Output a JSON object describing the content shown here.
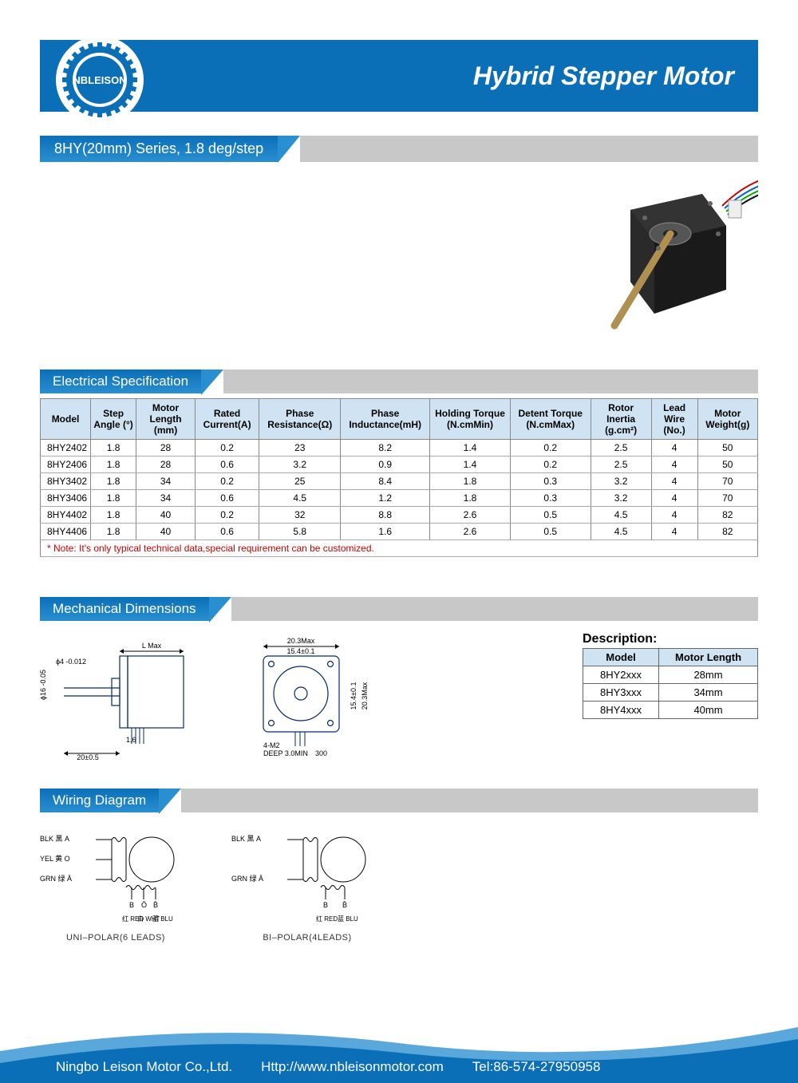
{
  "colors": {
    "primary": "#0b6fb8",
    "primary_light": "#2a8fd0",
    "header_th_bg": "#cfe3f2",
    "gray_bar": "#c8c8c8",
    "note_red": "#c00000",
    "footer_curve": "#0b6fb8"
  },
  "logo_text": "NBLEISON",
  "main_title": "Hybrid Stepper Motor",
  "series_title": "8HY(20mm) Series, 1.8 deg/step",
  "sections": {
    "electrical": "Electrical Specification",
    "mechanical": "Mechanical Dimensions",
    "wiring": "Wiring Diagram"
  },
  "spec_table": {
    "columns": [
      "Model",
      "Step Angle (°)",
      "Motor Length (mm)",
      "Rated Current(A)",
      "Phase Resistance(Ω)",
      "Phase Inductance(mH)",
      "Holding Torque (N.cmMin)",
      "Detent Torque (N.cmMax)",
      "Rotor Inertia (g.cm²)",
      "Lead Wire (No.)",
      "Motor Weight(g)"
    ],
    "rows": [
      [
        "8HY2402",
        "1.8",
        "28",
        "0.2",
        "23",
        "8.2",
        "1.4",
        "0.2",
        "2.5",
        "4",
        "50"
      ],
      [
        "8HY2406",
        "1.8",
        "28",
        "0.6",
        "3.2",
        "0.9",
        "1.4",
        "0.2",
        "2.5",
        "4",
        "50"
      ],
      [
        "8HY3402",
        "1.8",
        "34",
        "0.2",
        "25",
        "8.4",
        "1.8",
        "0.3",
        "3.2",
        "4",
        "70"
      ],
      [
        "8HY3406",
        "1.8",
        "34",
        "0.6",
        "4.5",
        "1.2",
        "1.8",
        "0.3",
        "3.2",
        "4",
        "70"
      ],
      [
        "8HY4402",
        "1.8",
        "40",
        "0.2",
        "32",
        "8.8",
        "2.6",
        "0.5",
        "4.5",
        "4",
        "82"
      ],
      [
        "8HY4406",
        "1.8",
        "40",
        "0.6",
        "5.8",
        "1.6",
        "2.6",
        "0.5",
        "4.5",
        "4",
        "82"
      ]
    ],
    "note": "* Note: It's only typical technical data,special requirement can be customized."
  },
  "mech": {
    "dims": {
      "L_label": "L Max",
      "width": "20.3Max",
      "inner": "15.4±0.1",
      "hole": "4-M2",
      "hole2": "DEEP 3.0MIN",
      "shaft_d": "ϕ4 -0.012",
      "body_d": "ϕ16 -0.05",
      "shaft_len": "20±0.5",
      "flange": "1.6",
      "lead": "300"
    },
    "desc_title": "Description:",
    "desc_columns": [
      "Model",
      "Motor Length"
    ],
    "desc_rows": [
      [
        "8HY2xxx",
        "28mm"
      ],
      [
        "8HY3xxx",
        "34mm"
      ],
      [
        "8HY4xxx",
        "40mm"
      ]
    ]
  },
  "wiring": {
    "uni": {
      "leads_left": [
        "BLK 黑 A",
        "YEL 黄 O",
        "GRN 绿 Ā"
      ],
      "leads_bottom": [
        "B",
        "Ō",
        "B̄"
      ],
      "leads_bottom2": [
        "红 RED",
        "白 WHT",
        "蓝 BLU"
      ],
      "caption": "UNI–POLAR(6 LEADS)"
    },
    "bi": {
      "leads_left": [
        "BLK 黑 A",
        "",
        "GRN 绿 Ā"
      ],
      "leads_bottom": [
        "B",
        "B̄"
      ],
      "leads_bottom2": [
        "红 RED",
        "蓝 BLU"
      ],
      "caption": "BI–POLAR(4LEADS)"
    }
  },
  "footer": {
    "company": "Ningbo Leison Motor Co.,Ltd.",
    "url": "Http://www.nbleisonmotor.com",
    "tel": "Tel:86-574-27950958"
  }
}
